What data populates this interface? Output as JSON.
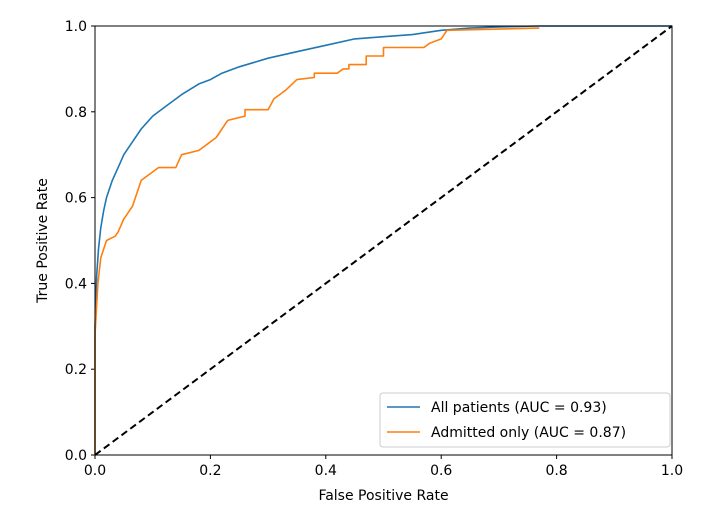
{
  "chart_data": {
    "type": "line",
    "title": "",
    "xlabel": "False Positive Rate",
    "ylabel": "True Positive Rate",
    "xlim": [
      0,
      1
    ],
    "ylim": [
      0,
      1
    ],
    "xticks": [
      "0.0",
      "0.2",
      "0.4",
      "0.6",
      "0.8",
      "1.0"
    ],
    "yticks": [
      "0.0",
      "0.2",
      "0.4",
      "0.6",
      "0.8",
      "1.0"
    ],
    "grid": false,
    "legend_position": "bottom-right",
    "series": [
      {
        "name": "All patients (AUC = 0.93)",
        "color": "#1f77b4",
        "x": [
          0,
          0,
          0.003,
          0.006,
          0.01,
          0.015,
          0.02,
          0.03,
          0.04,
          0.05,
          0.065,
          0.08,
          0.1,
          0.12,
          0.15,
          0.18,
          0.2,
          0.22,
          0.25,
          0.3,
          0.35,
          0.4,
          0.45,
          0.5,
          0.55,
          0.6,
          0.65,
          0.7,
          0.77,
          1.0
        ],
        "y": [
          0,
          0.3,
          0.42,
          0.48,
          0.53,
          0.57,
          0.6,
          0.64,
          0.67,
          0.7,
          0.73,
          0.76,
          0.79,
          0.81,
          0.84,
          0.865,
          0.875,
          0.89,
          0.905,
          0.925,
          0.94,
          0.955,
          0.97,
          0.975,
          0.98,
          0.99,
          0.995,
          0.998,
          1.0,
          1.0
        ]
      },
      {
        "name": "Admitted only (AUC = 0.87)",
        "color": "#ff7f0e",
        "x": [
          0,
          0,
          0.005,
          0.01,
          0.02,
          0.035,
          0.04,
          0.05,
          0.055,
          0.065,
          0.07,
          0.08,
          0.09,
          0.1,
          0.11,
          0.14,
          0.15,
          0.18,
          0.19,
          0.2,
          0.21,
          0.22,
          0.23,
          0.26,
          0.26,
          0.3,
          0.31,
          0.33,
          0.35,
          0.38,
          0.38,
          0.42,
          0.43,
          0.44,
          0.44,
          0.47,
          0.47,
          0.5,
          0.5,
          0.57,
          0.58,
          0.6,
          0.61,
          0.77
        ],
        "y": [
          0,
          0.28,
          0.4,
          0.46,
          0.5,
          0.51,
          0.52,
          0.55,
          0.56,
          0.58,
          0.6,
          0.64,
          0.65,
          0.66,
          0.67,
          0.67,
          0.7,
          0.71,
          0.72,
          0.73,
          0.74,
          0.76,
          0.78,
          0.79,
          0.805,
          0.805,
          0.83,
          0.85,
          0.875,
          0.88,
          0.89,
          0.89,
          0.9,
          0.9,
          0.91,
          0.91,
          0.93,
          0.93,
          0.95,
          0.95,
          0.96,
          0.97,
          0.99,
          0.995
        ]
      },
      {
        "color": "#000000",
        "style": "dashed",
        "x": [
          0,
          1
        ],
        "y": [
          0,
          1
        ]
      }
    ]
  }
}
